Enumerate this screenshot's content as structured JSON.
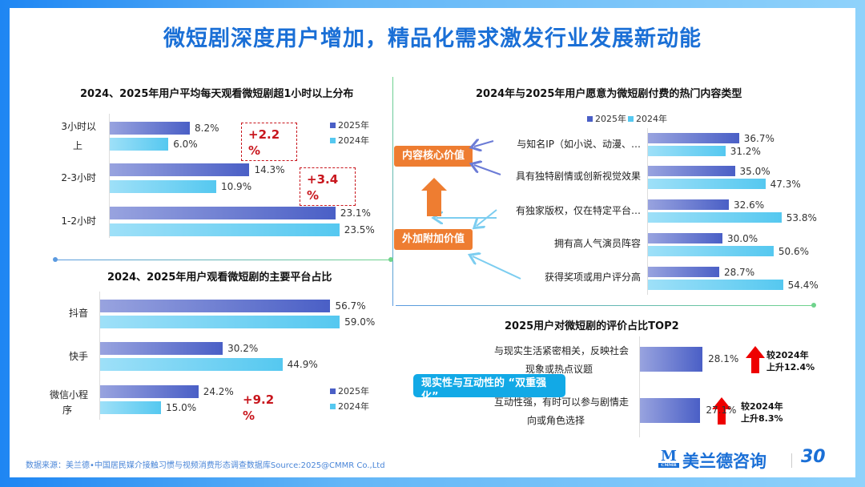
{
  "title": "微短剧深度用户增加，精品化需求激发行业发展新动能",
  "colors": {
    "bar_2025": "#4a5fc6",
    "bar_2024": "#55c8f0",
    "accent_red": "#c8161d",
    "orange": "#ee7d31",
    "title_blue": "#1a6fd6"
  },
  "chart_data": [
    {
      "type": "bar",
      "orientation": "horizontal",
      "title": "2024、2025年用户平均每天观看微短剧超1小时以上分布",
      "categories": [
        "3小时以上",
        "2-3小时",
        "1-2小时"
      ],
      "series": [
        {
          "name": "2025年",
          "values": [
            8.2,
            14.3,
            23.1
          ],
          "labels": [
            "8.2%",
            "14.3%",
            "23.1%"
          ]
        },
        {
          "name": "2024年",
          "values": [
            6.0,
            10.9,
            23.5
          ],
          "labels": [
            "6.0%",
            "10.9%",
            "23.5%"
          ]
        }
      ],
      "annotations": [
        "+2.2%",
        "+3.4%"
      ],
      "legend": "right"
    },
    {
      "type": "bar",
      "orientation": "horizontal",
      "title": "2024、2025年用户观看微短剧的主要平台占比",
      "categories": [
        "抖音",
        "快手",
        "微信小程序"
      ],
      "series": [
        {
          "name": "2025年",
          "values": [
            56.7,
            30.2,
            24.2
          ],
          "labels": [
            "56.7%",
            "30.2%",
            "24.2%"
          ]
        },
        {
          "name": "2024年",
          "values": [
            59.0,
            44.9,
            15.0
          ],
          "labels": [
            "59.0%",
            "44.9%",
            "15.0%"
          ]
        }
      ],
      "annotations": [
        "+9.2%"
      ],
      "legend": "bottom-right"
    },
    {
      "type": "bar",
      "orientation": "horizontal",
      "title": "2024年与2025年用户愿意为微短剧付费的热门内容类型",
      "categories": [
        "与知名IP（如小说、动漫、…",
        "具有独特剧情或创新视觉效果",
        "有独家版权，仅在特定平台…",
        "拥有高人气演员阵容",
        "获得奖项或用户评分高"
      ],
      "series": [
        {
          "name": "2025年",
          "values": [
            36.7,
            35.0,
            32.6,
            30.0,
            28.7
          ],
          "labels": [
            "36.7%",
            "35.0%",
            "32.6%",
            "30.0%",
            "28.7%"
          ]
        },
        {
          "name": "2024年",
          "values": [
            31.2,
            47.3,
            53.8,
            50.6,
            54.4
          ],
          "labels": [
            "31.2%",
            "47.3%",
            "53.8%",
            "50.6%",
            "54.4%"
          ]
        }
      ],
      "annotations": [
        "内容核心价值",
        "外加附加价值"
      ],
      "legend": "top"
    },
    {
      "type": "bar",
      "orientation": "horizontal",
      "title": "2025用户对微短剧的评价占比TOP2",
      "categories": [
        "与现实生活紧密相关，反映社会现象或热点议题",
        "互动性强，有时可以参与剧情走向或角色选择"
      ],
      "series": [
        {
          "values": [
            28.1,
            27.1
          ],
          "labels": [
            "28.1%",
            "27.1%"
          ]
        }
      ],
      "annotations": [
        "较2024年上升12.4%",
        "较2024年上升8.3%",
        "现实性与互动性的 “双重强化”"
      ]
    }
  ],
  "c1": {
    "cats": [
      "3小时以",
      "上",
      "2-3小时",
      "1-2小时"
    ],
    "diff1a": "+2.2",
    "diff1b": "%",
    "diff2a": "+3.4",
    "diff2b": "%"
  },
  "c2": {
    "cats": [
      "抖音",
      "快手",
      "微信小程",
      "序"
    ],
    "diffa": "+9.2",
    "diffb": "%"
  },
  "c3": {
    "cats": [
      "与知名IP（如小说、动漫、…",
      "具有独特剧情或创新视觉效果",
      "有独家版权，仅在特定平台…",
      "拥有高人气演员阵容",
      "获得奖项或用户评分高"
    ],
    "box1": "内容核心价值",
    "box2": "外加附加价值"
  },
  "c4": {
    "cat1a": "与现实生活紧密相关，反映社会",
    "cat1b": "现象或热点议题",
    "cat2a": "互动性强，有时可以参与剧情走",
    "cat2b": "向或角色选择",
    "up1a": "较2024年",
    "up1b": "上升12.4%",
    "up2a": "较2024年",
    "up2b": "上升8.3%",
    "callout": "现实性与互动性的 “双重强化”"
  },
  "legend": {
    "y2025": "2025年",
    "y2024": "2024年"
  },
  "footer": {
    "source": "数据来源：美兰德•中国居民媒介接触习惯与视频消费形态调查数据库Source:2025@CMMR Co.,Ltd",
    "logo_text": "美兰德咨询",
    "logo_mark": "CMMR",
    "anniv": "30"
  }
}
